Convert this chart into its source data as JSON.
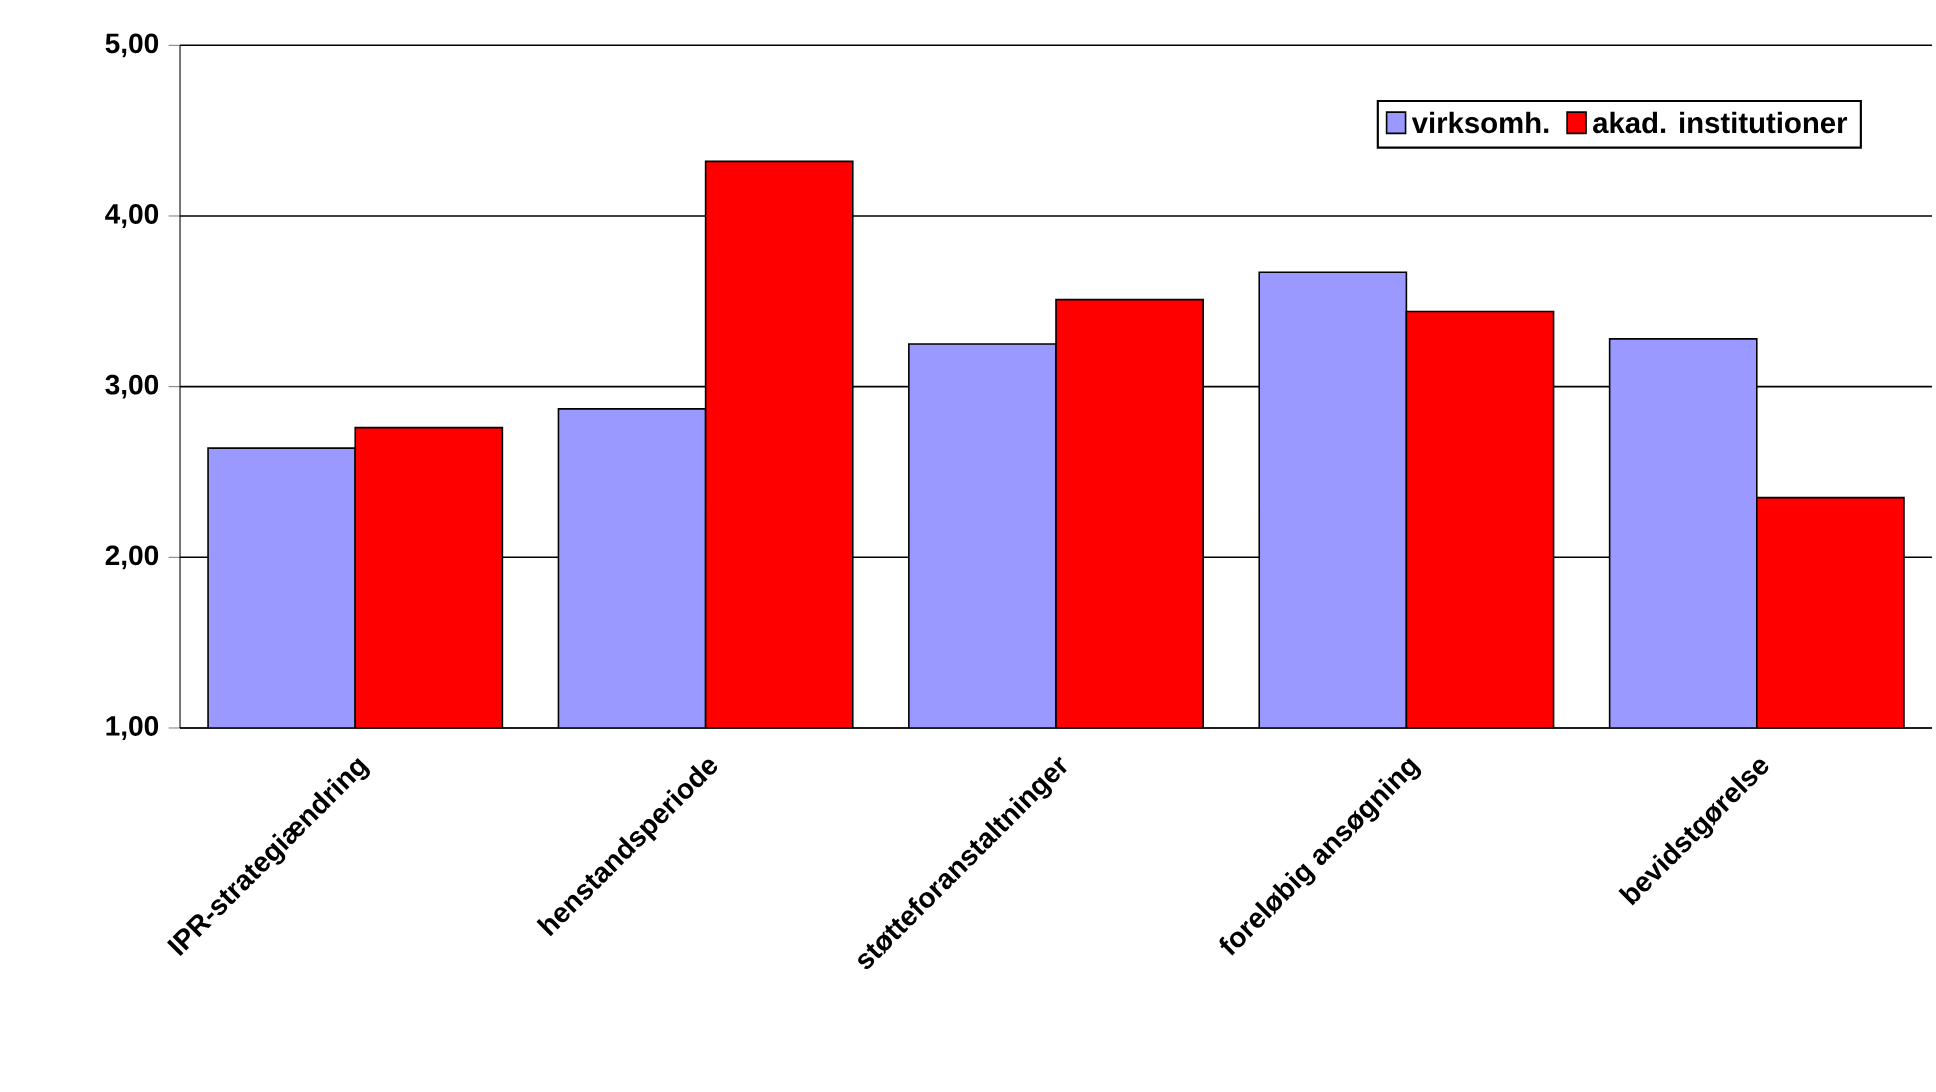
{
  "chart_data": {
    "type": "bar",
    "categories": [
      "IPR-strategiændring",
      "henstandsperiode",
      "støtteforanstaltninger",
      "foreløbig ansøgning",
      "bevidstgørelse"
    ],
    "series": [
      {
        "name": "virksomh.",
        "color": "#9999ff",
        "values": [
          2.64,
          2.87,
          3.25,
          3.67,
          3.28
        ]
      },
      {
        "name": "akad. institutioner",
        "color": "#ff0000",
        "values": [
          2.76,
          4.32,
          3.51,
          3.44,
          2.35
        ]
      }
    ],
    "ylim": [
      1,
      5
    ],
    "yticks": [
      {
        "value": 1,
        "label": "1,00"
      },
      {
        "value": 2,
        "label": "2,00"
      },
      {
        "value": 3,
        "label": "3,00"
      },
      {
        "value": 4,
        "label": "4,00"
      },
      {
        "value": 5,
        "label": "5,00"
      }
    ],
    "grid": "y",
    "legend": "top right"
  }
}
